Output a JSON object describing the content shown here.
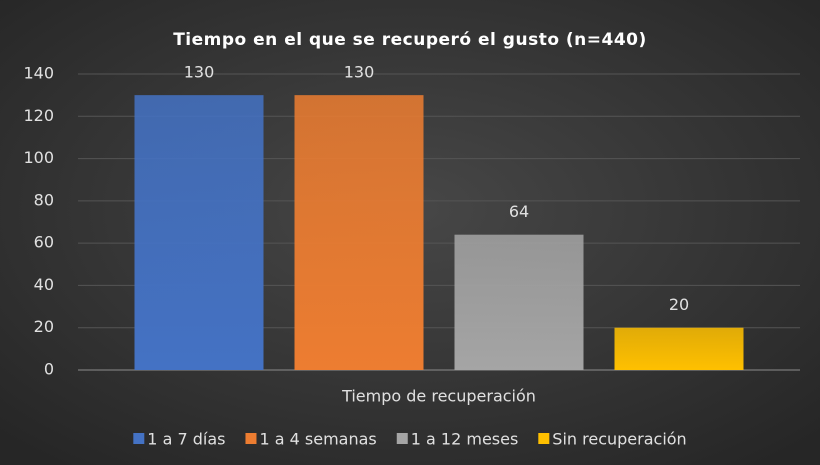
{
  "chart_data": {
    "type": "bar",
    "title": "Tiempo en el que se recuperó el gusto (n=440)",
    "categories": [
      "Tiempo de recuperación"
    ],
    "series": [
      {
        "name": "1 a 7 días",
        "color": "#4472c4",
        "values": [
          130
        ]
      },
      {
        "name": "1 a 4 semanas",
        "color": "#ed7d31",
        "values": [
          130
        ]
      },
      {
        "name": "1 a 12 meses",
        "color": "#a5a5a5",
        "values": [
          64
        ]
      },
      {
        "name": "Sin recuperación",
        "color": "#ffc000",
        "values": [
          20
        ]
      }
    ],
    "ylim": [
      0,
      140
    ],
    "yticks": [
      0,
      20,
      40,
      60,
      80,
      100,
      120,
      140
    ],
    "grid": true,
    "legend": "bottom"
  }
}
